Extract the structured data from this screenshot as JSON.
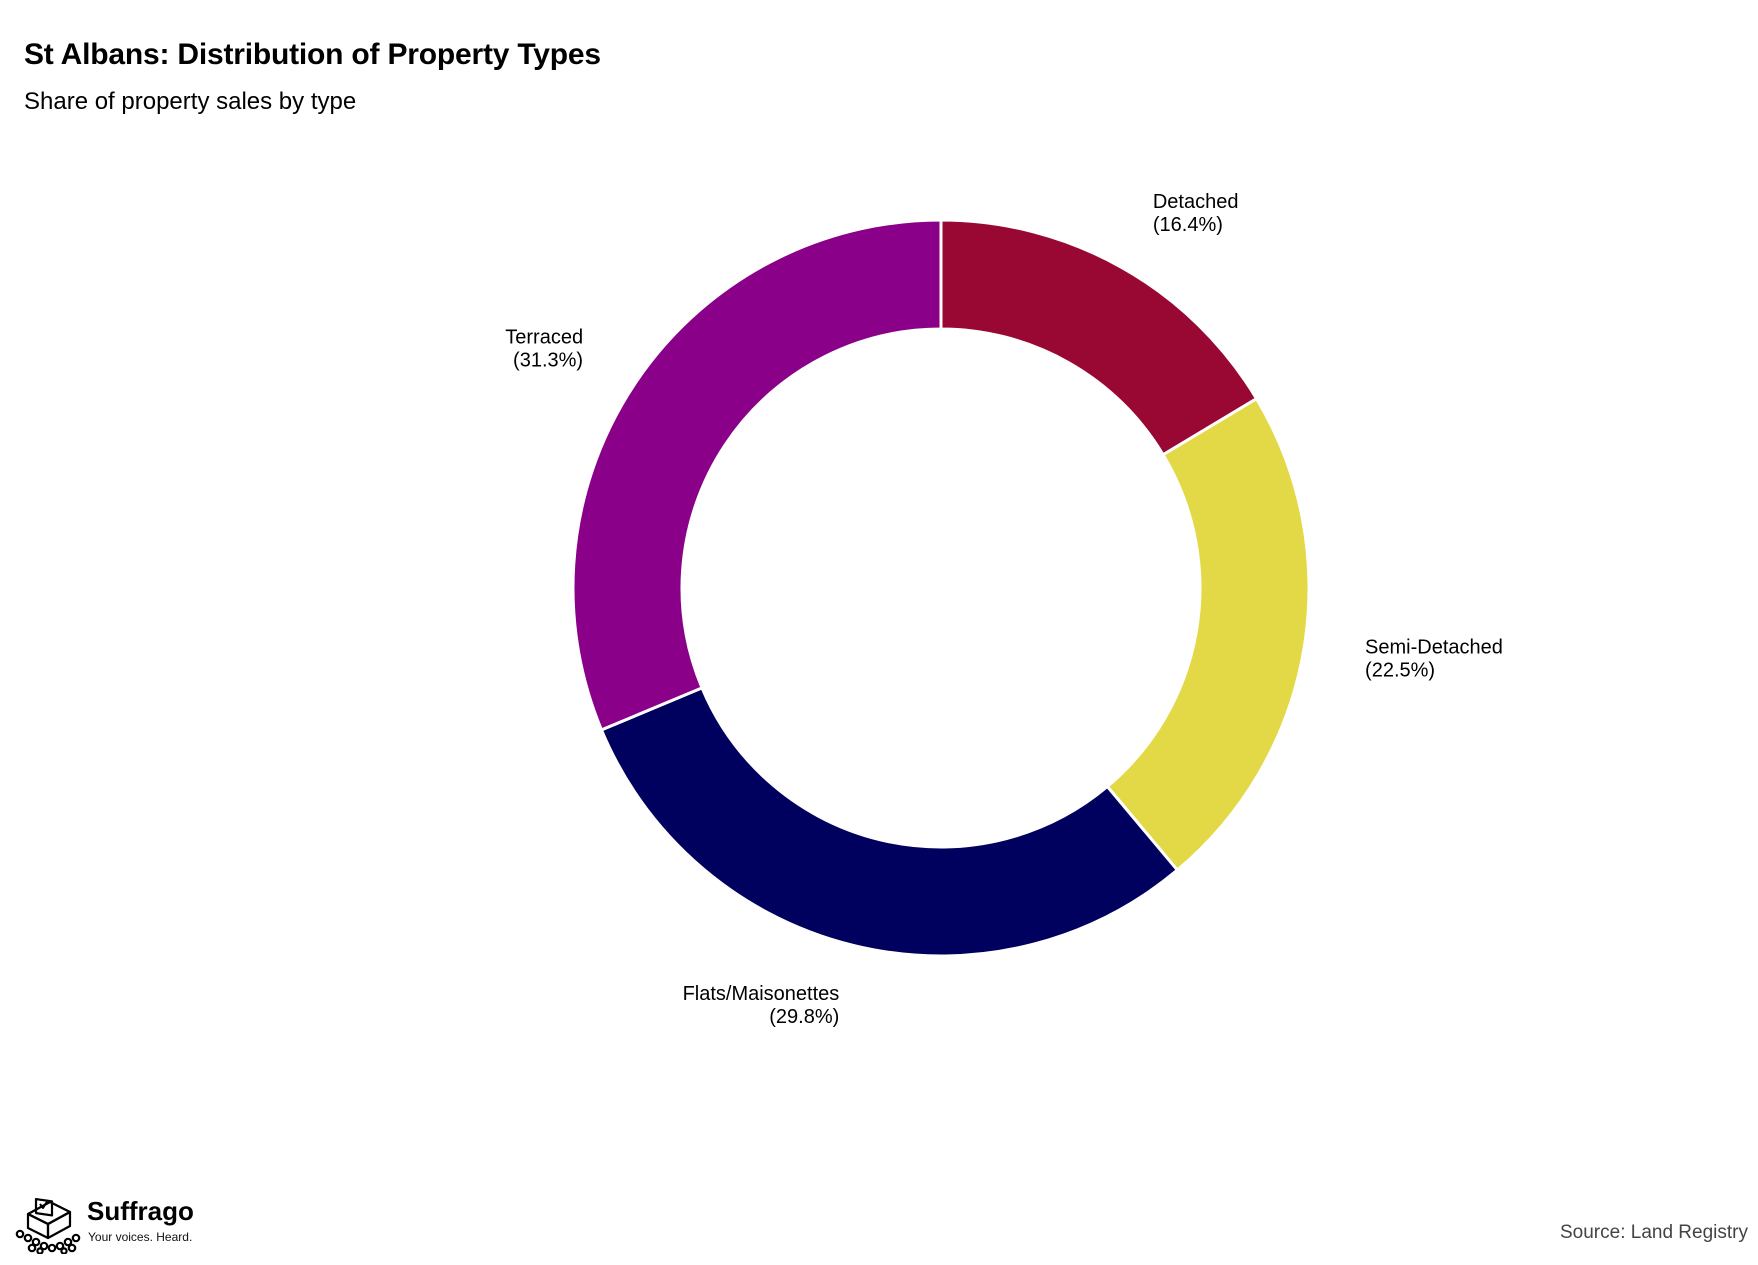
{
  "chart_data": {
    "type": "pie",
    "variant": "donut",
    "title": "St Albans: Distribution of Property Types",
    "subtitle": "Share of property sales by type",
    "unit": "%",
    "slices": [
      {
        "label": "Detached",
        "value": 16.4,
        "display": "(16.4%)",
        "color": "#990833"
      },
      {
        "label": "Semi-Detached",
        "value": 22.5,
        "display": "(22.5%)",
        "color": "#e3d845"
      },
      {
        "label": "Flats/Maisonettes",
        "value": 29.8,
        "display": "(29.8%)",
        "color": "#00005e"
      },
      {
        "label": "Terraced",
        "value": 31.3,
        "display": "(31.3%)",
        "color": "#8a0089"
      }
    ],
    "direction": "clockwise",
    "start": "top",
    "legend": "none"
  },
  "branding": {
    "logo_name": "Suffrago",
    "logo_tagline": "Your voices. Heard.",
    "logo_icon": "ballot-box-crowd-icon"
  },
  "source": "Source: Land Registry"
}
